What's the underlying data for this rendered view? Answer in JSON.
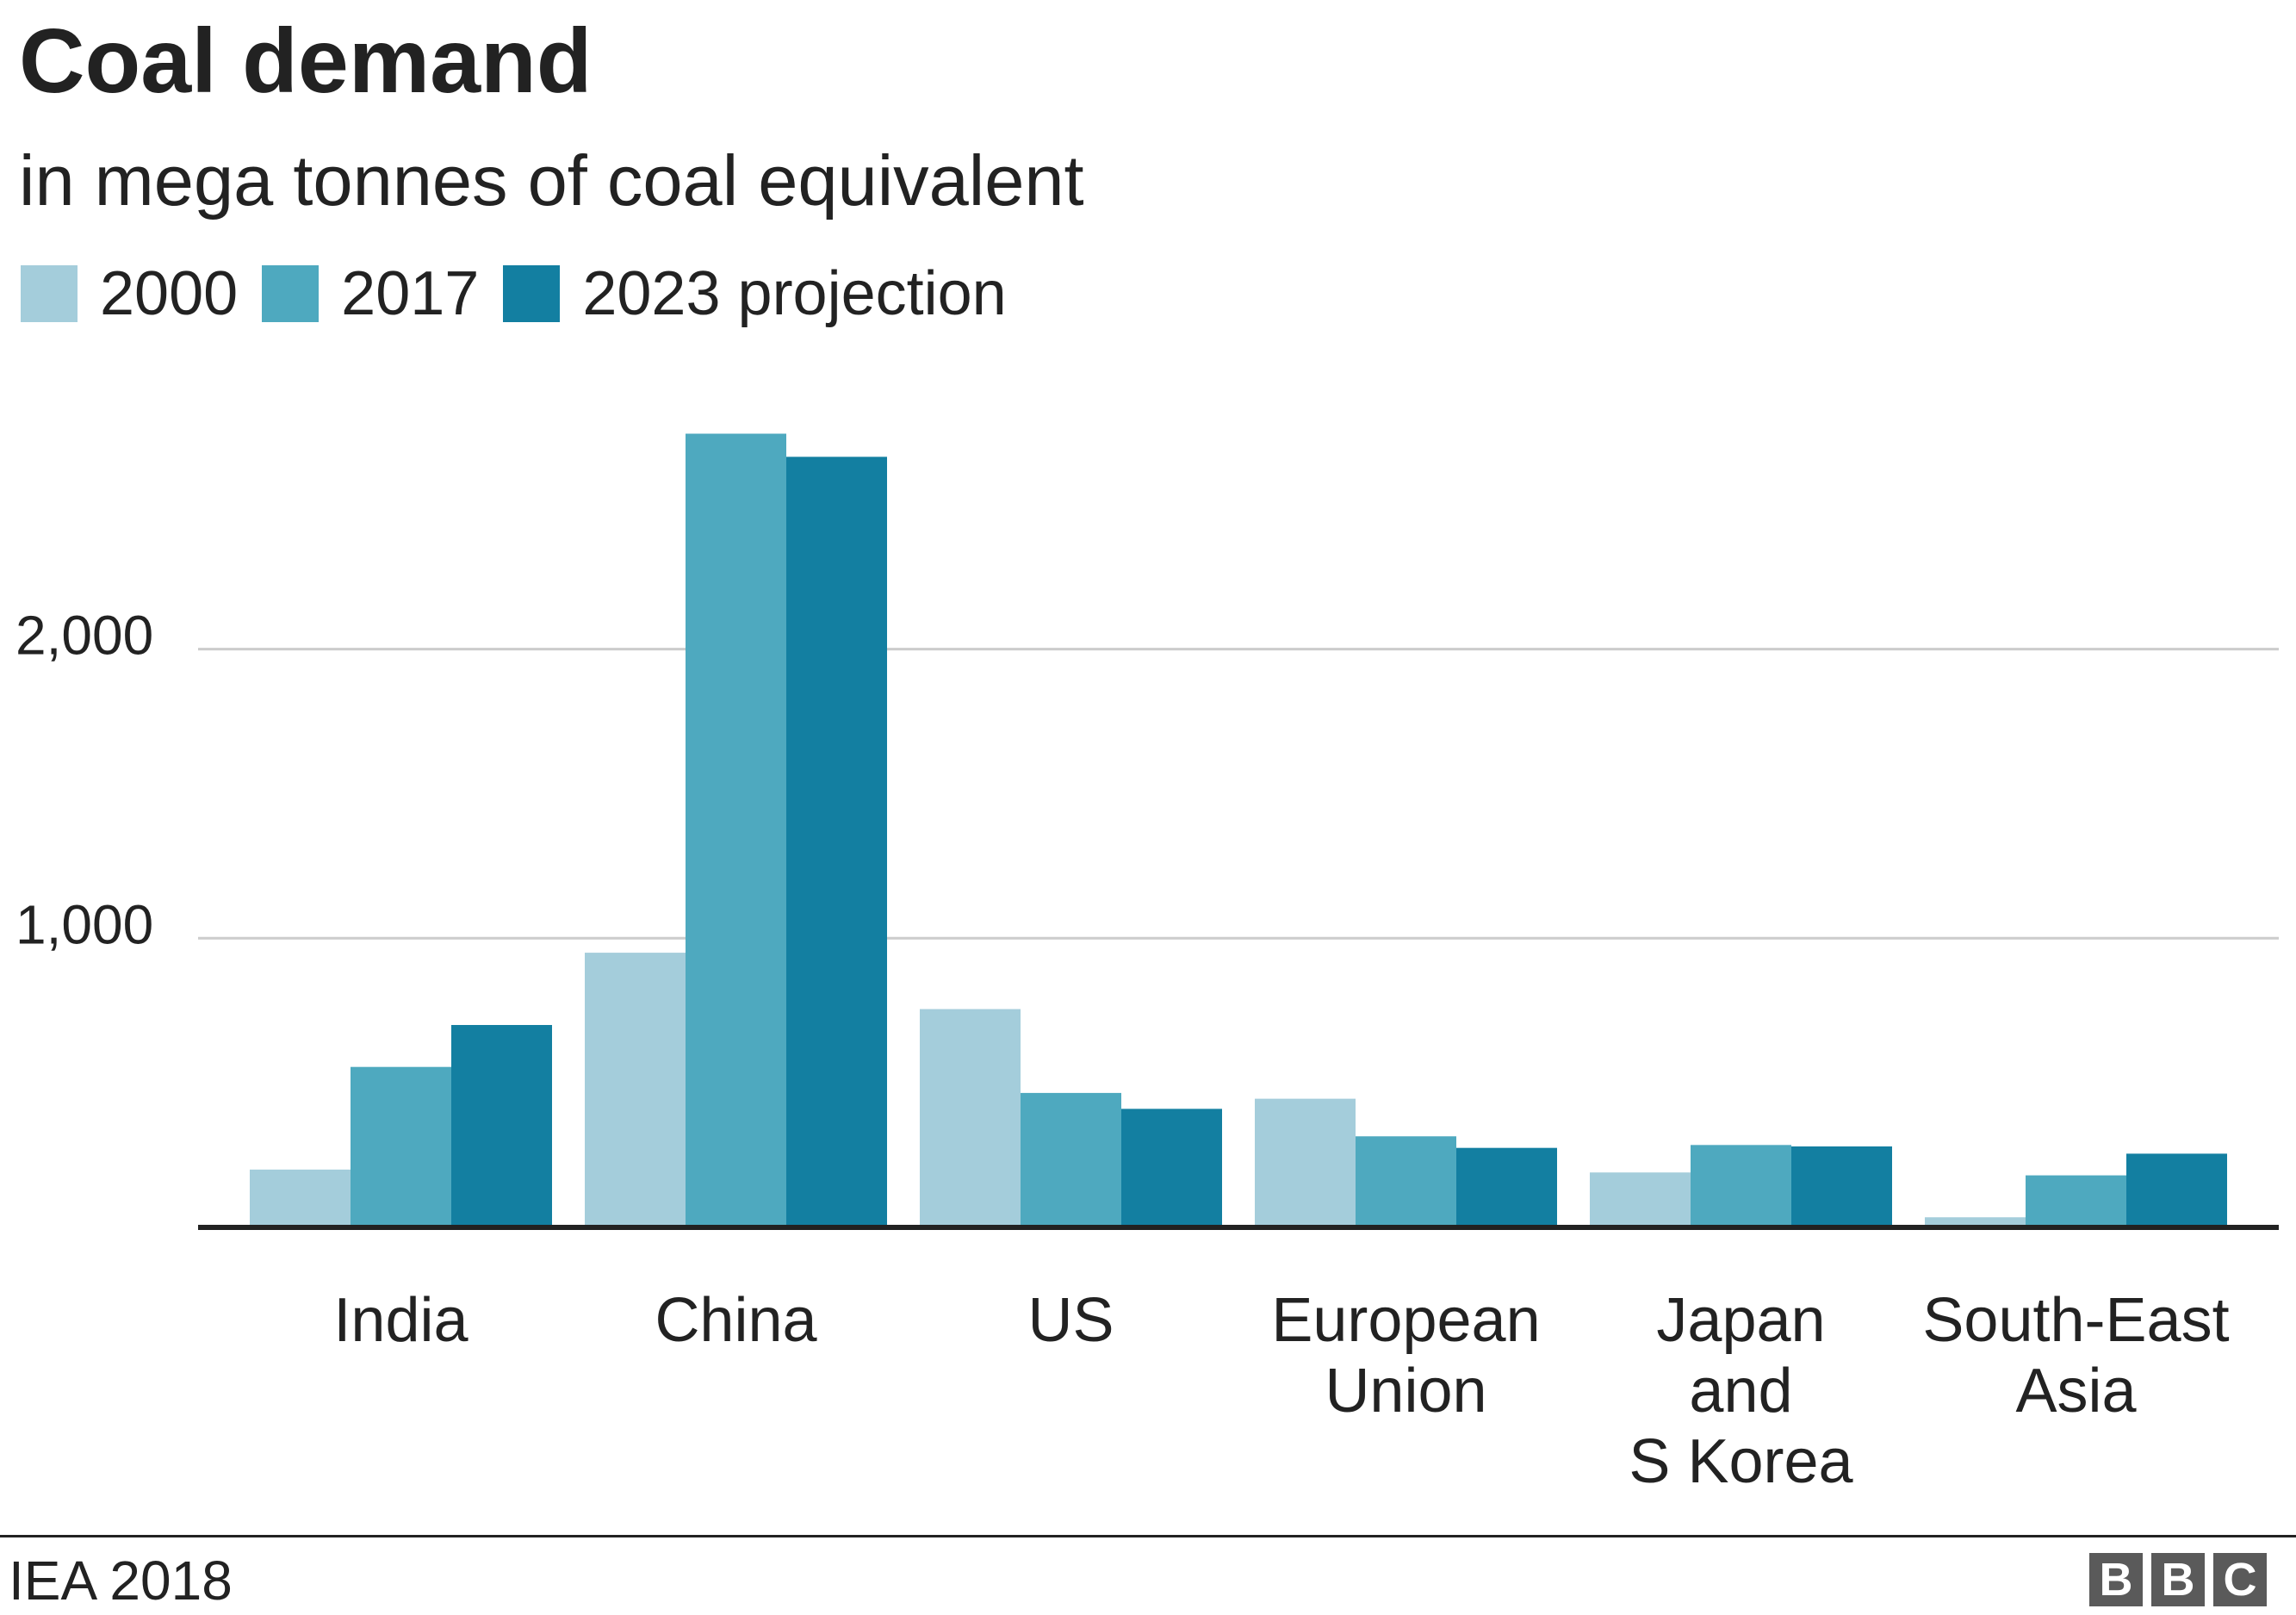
{
  "header": {
    "title": "Coal demand",
    "subtitle": "in mega tonnes of coal equivalent"
  },
  "legend": [
    {
      "label": "2000",
      "color": "#a4cddb"
    },
    {
      "label": "2017",
      "color": "#4ea9bf"
    },
    {
      "label": "2023 projection",
      "color": "#137fa1"
    }
  ],
  "footer": {
    "source": "IEA 2018",
    "logo_letters": [
      "B",
      "B",
      "C"
    ]
  },
  "chart_data": {
    "type": "bar",
    "categories": [
      [
        "India"
      ],
      [
        "China"
      ],
      [
        "US"
      ],
      [
        "European",
        "Union"
      ],
      [
        "Japan",
        "and",
        "S Korea"
      ],
      [
        "South-East",
        "Asia"
      ]
    ],
    "series": [
      {
        "name": "2000",
        "color": "#a4cddb",
        "values": [
          200,
          950,
          755,
          445,
          190,
          35
        ]
      },
      {
        "name": "2017",
        "color": "#4ea9bf",
        "values": [
          555,
          2745,
          465,
          315,
          285,
          180
        ]
      },
      {
        "name": "2023 projection",
        "color": "#137fa1",
        "values": [
          700,
          2665,
          410,
          275,
          280,
          255
        ]
      }
    ],
    "yticks": [
      1000,
      2000
    ],
    "ytick_labels": [
      "1,000",
      "2,000"
    ],
    "ylim": [
      0,
      2800
    ],
    "grid": true,
    "legend_position": "top-left"
  }
}
